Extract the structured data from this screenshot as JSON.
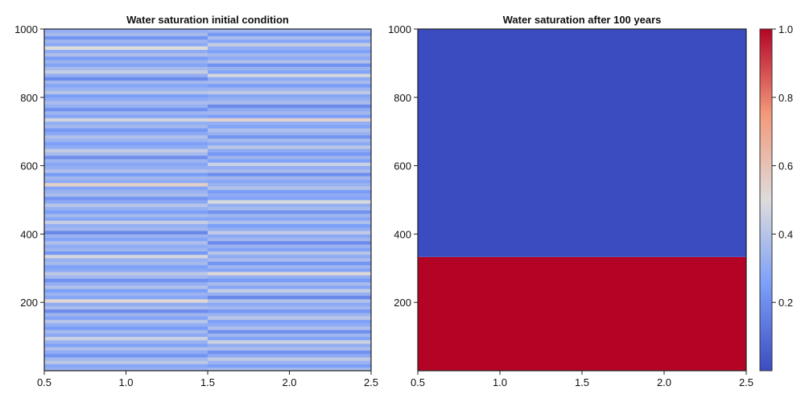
{
  "chart_data": [
    {
      "type": "heatmap",
      "title": "Water saturation initial condition",
      "xlabel": "",
      "ylabel": "",
      "xlim": [
        0.5,
        2.5
      ],
      "ylim": [
        0,
        1000
      ],
      "xticks": [
        "0.5",
        "1.0",
        "1.5",
        "2.0",
        "2.5"
      ],
      "yticks": [
        "200",
        "400",
        "600",
        "800",
        "1000"
      ],
      "x_columns": [
        1,
        2
      ],
      "values": [
        [
          0.32,
          0.28,
          0.41,
          0.35,
          0.22,
          0.3,
          0.38,
          0.26,
          0.33,
          0.45,
          0.29,
          0.36,
          0.24,
          0.31,
          0.4,
          0.27,
          0.34,
          0.19,
          0.37,
          0.3,
          0.52,
          0.28,
          0.33,
          0.25,
          0.39,
          0.31,
          0.21,
          0.35,
          0.42,
          0.29,
          0.26,
          0.36,
          0.32,
          0.48,
          0.23,
          0.34,
          0.3,
          0.38,
          0.27,
          0.33,
          0.18,
          0.35,
          0.31,
          0.44,
          0.28,
          0.36,
          0.25,
          0.32,
          0.4,
          0.29,
          0.22,
          0.37,
          0.33,
          0.27,
          0.55,
          0.3,
          0.35,
          0.24,
          0.39,
          0.31,
          0.28,
          0.34,
          0.2,
          0.36,
          0.43,
          0.3,
          0.26,
          0.33,
          0.38,
          0.29,
          0.23,
          0.35,
          0.31,
          0.47,
          0.27,
          0.34,
          0.21,
          0.32,
          0.37,
          0.3,
          0.25,
          0.4,
          0.33,
          0.28,
          0.35,
          0.19,
          0.31,
          0.44,
          0.36,
          0.27,
          0.33,
          0.24,
          0.38,
          0.3,
          0.5,
          0.29,
          0.34,
          0.22,
          0.36,
          0.31
        ],
        [
          0.36,
          0.25,
          0.33,
          0.42,
          0.29,
          0.21,
          0.37,
          0.31,
          0.46,
          0.27,
          0.34,
          0.2,
          0.38,
          0.3,
          0.26,
          0.41,
          0.33,
          0.23,
          0.35,
          0.29,
          0.39,
          0.18,
          0.32,
          0.44,
          0.28,
          0.36,
          0.24,
          0.31,
          0.51,
          0.27,
          0.34,
          0.22,
          0.37,
          0.3,
          0.4,
          0.26,
          0.33,
          0.19,
          0.35,
          0.29,
          0.43,
          0.31,
          0.25,
          0.38,
          0.28,
          0.34,
          0.21,
          0.36,
          0.32,
          0.49,
          0.27,
          0.3,
          0.24,
          0.39,
          0.33,
          0.28,
          0.35,
          0.2,
          0.37,
          0.31,
          0.45,
          0.26,
          0.34,
          0.23,
          0.3,
          0.41,
          0.29,
          0.36,
          0.22,
          0.33,
          0.38,
          0.27,
          0.31,
          0.54,
          0.25,
          0.35,
          0.3,
          0.19,
          0.37,
          0.32,
          0.28,
          0.42,
          0.34,
          0.24,
          0.36,
          0.3,
          0.47,
          0.27,
          0.33,
          0.21,
          0.39,
          0.29,
          0.35,
          0.26,
          0.31,
          0.44,
          0.28,
          0.37,
          0.23,
          0.34
        ]
      ]
    },
    {
      "type": "heatmap",
      "title": "Water saturation after 100 years",
      "xlabel": "",
      "ylabel": "",
      "xlim": [
        0.5,
        2.5
      ],
      "ylim": [
        0,
        1000
      ],
      "xticks": [
        "0.5",
        "1.0",
        "1.5",
        "2.0",
        "2.5"
      ],
      "yticks": [
        "200",
        "400",
        "600",
        "800",
        "1000"
      ],
      "regions": [
        {
          "y_from": 0,
          "y_to": 333,
          "value": 1.0
        },
        {
          "y_from": 333,
          "y_to": 1000,
          "value": 0.0
        }
      ]
    }
  ],
  "colorbar": {
    "colormap": "coolwarm",
    "range": [
      0,
      1
    ],
    "ticks": [
      "0.2",
      "0.4",
      "0.6",
      "0.8",
      "1.0"
    ],
    "stops": [
      "#3b4cc0",
      "#7b9ff9",
      "#dddcdc",
      "#f49a7b",
      "#b40426"
    ]
  }
}
